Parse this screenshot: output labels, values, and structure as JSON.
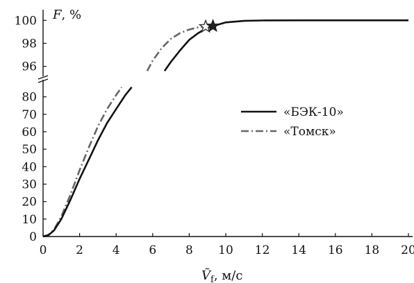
{
  "chart_data": {
    "type": "line",
    "title": "",
    "ylabel_var": "F",
    "ylabel_unit": "%",
    "xlabel_var": "Ṽ",
    "xlabel_sub": "f",
    "xlabel_unit": "м/с",
    "xlim": [
      0,
      20
    ],
    "ylim_lower": [
      0,
      85
    ],
    "ylim_upper": [
      95.5,
      100.5
    ],
    "broken_y_axis": true,
    "x_ticks": [
      "0",
      "2",
      "4",
      "6",
      "8",
      "10",
      "12",
      "14",
      "16",
      "18",
      "20"
    ],
    "y_ticks_lower": [
      "0",
      "10",
      "20",
      "30",
      "40",
      "50",
      "60",
      "70",
      "80"
    ],
    "y_ticks_upper": [
      "96",
      "98",
      "100"
    ],
    "legend_position": "right-middle",
    "series": [
      {
        "name": "«БЭК-10»",
        "style": "solid",
        "color": "#111111",
        "marker": "filled-star",
        "marker_point": [
          9.3,
          99.5
        ],
        "lower_points": [
          [
            0,
            0
          ],
          [
            0.3,
            0.8
          ],
          [
            0.6,
            3.5
          ],
          [
            1.0,
            10
          ],
          [
            1.5,
            21
          ],
          [
            2.0,
            33
          ],
          [
            2.5,
            44
          ],
          [
            3.0,
            55
          ],
          [
            3.5,
            65
          ],
          [
            4.0,
            73
          ],
          [
            4.5,
            81
          ],
          [
            4.85,
            85.5
          ]
        ],
        "upper_points": [
          [
            6.65,
            95.6
          ],
          [
            7.0,
            96.4
          ],
          [
            7.5,
            97.4
          ],
          [
            8.0,
            98.3
          ],
          [
            8.5,
            98.9
          ],
          [
            9.0,
            99.35
          ],
          [
            9.3,
            99.5
          ],
          [
            10.0,
            99.82
          ],
          [
            11.0,
            99.95
          ],
          [
            12.0,
            99.99
          ],
          [
            14.0,
            100
          ],
          [
            16.0,
            100
          ],
          [
            18.0,
            100
          ],
          [
            20.0,
            100
          ]
        ]
      },
      {
        "name": "«Томск»",
        "style": "dash-dot",
        "color": "#666666",
        "marker": "open-star",
        "marker_point": [
          8.9,
          99.45
        ],
        "lower_points": [
          [
            0,
            0
          ],
          [
            0.3,
            1
          ],
          [
            0.6,
            4
          ],
          [
            1.0,
            11.5
          ],
          [
            1.5,
            24
          ],
          [
            2.0,
            38
          ],
          [
            2.5,
            51
          ],
          [
            3.0,
            63
          ],
          [
            3.5,
            73
          ],
          [
            4.0,
            81
          ],
          [
            4.3,
            85.5
          ]
        ],
        "upper_points": [
          [
            5.7,
            95.6
          ],
          [
            6.0,
            96.5
          ],
          [
            6.5,
            97.6
          ],
          [
            7.0,
            98.4
          ],
          [
            7.5,
            98.9
          ],
          [
            8.0,
            99.2
          ],
          [
            8.5,
            99.4
          ],
          [
            8.9,
            99.45
          ]
        ]
      }
    ]
  }
}
